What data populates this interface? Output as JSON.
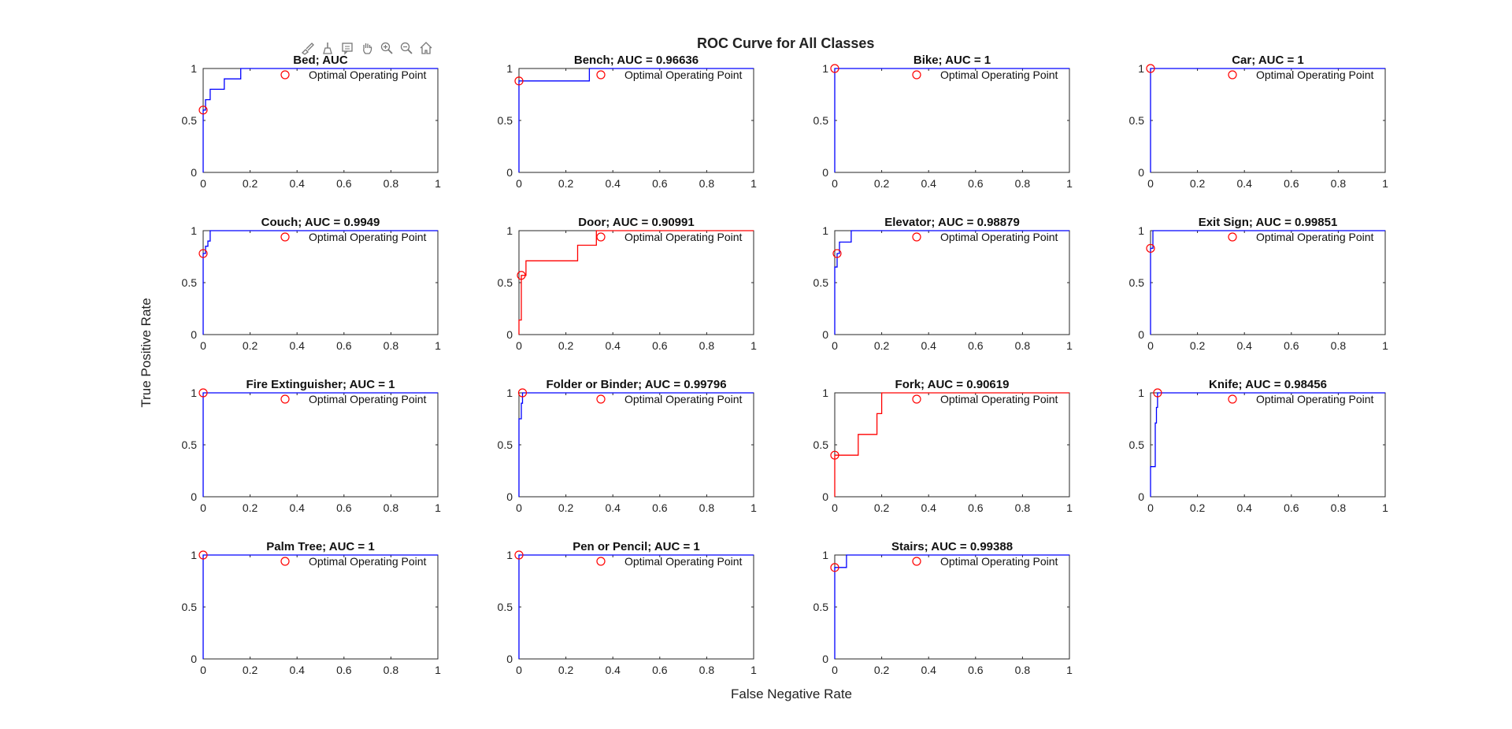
{
  "figure": {
    "title": "ROC Curve for All Classes",
    "xlabel": "False Negative Rate",
    "ylabel": "True Positive Rate"
  },
  "toolbar": [
    {
      "name": "brush-icon"
    },
    {
      "name": "clear-icon"
    },
    {
      "name": "data-tips-icon"
    },
    {
      "name": "pan-icon"
    },
    {
      "name": "zoom-in-icon"
    },
    {
      "name": "zoom-out-icon"
    },
    {
      "name": "home-icon"
    }
  ],
  "colors": {
    "blue": "#0000ff",
    "red": "#ff0000",
    "marker": "#ff0000",
    "axis": "#262626"
  },
  "chart_data": [
    {
      "type": "line",
      "title": "Bed; AUC",
      "color": "blue",
      "legend": "Optimal Operating Point",
      "legend_position": "top-right",
      "xlim": [
        0,
        1
      ],
      "ylim": [
        0,
        1
      ],
      "xticks": [
        "0",
        "0.2",
        "0.4",
        "0.6",
        "0.8",
        "1"
      ],
      "yticks": [
        "0",
        "0.5",
        "1"
      ],
      "x": [
        0,
        0,
        0.01,
        0.01,
        0.03,
        0.03,
        0.04,
        0.04,
        0.09,
        0.09,
        0.16,
        0.16,
        1
      ],
      "y": [
        0,
        0.6,
        0.6,
        0.7,
        0.7,
        0.8,
        0.8,
        0.8,
        0.8,
        0.9,
        0.9,
        1,
        1
      ],
      "optimal_point": [
        0,
        0.6
      ]
    },
    {
      "type": "line",
      "title": "Bench; AUC = 0.96636",
      "color": "blue",
      "legend": "Optimal Operating Point",
      "legend_position": "top-right",
      "xlim": [
        0,
        1
      ],
      "ylim": [
        0,
        1
      ],
      "xticks": [
        "0",
        "0.2",
        "0.4",
        "0.6",
        "0.8",
        "1"
      ],
      "yticks": [
        "0",
        "0.5",
        "1"
      ],
      "x": [
        0,
        0,
        0.3,
        0.3,
        1
      ],
      "y": [
        0,
        0.88,
        0.88,
        1,
        1
      ],
      "optimal_point": [
        0,
        0.88
      ]
    },
    {
      "type": "line",
      "title": "Bike; AUC = 1",
      "color": "blue",
      "legend": "Optimal Operating Point",
      "legend_position": "top-right",
      "xlim": [
        0,
        1
      ],
      "ylim": [
        0,
        1
      ],
      "xticks": [
        "0",
        "0.2",
        "0.4",
        "0.6",
        "0.8",
        "1"
      ],
      "yticks": [
        "0",
        "0.5",
        "1"
      ],
      "x": [
        0,
        0,
        1
      ],
      "y": [
        0,
        1,
        1
      ],
      "optimal_point": [
        0,
        1
      ]
    },
    {
      "type": "line",
      "title": "Car; AUC = 1",
      "color": "blue",
      "legend": "Optimal Operating Point",
      "legend_position": "top-right",
      "xlim": [
        0,
        1
      ],
      "ylim": [
        0,
        1
      ],
      "xticks": [
        "0",
        "0.2",
        "0.4",
        "0.6",
        "0.8",
        "1"
      ],
      "yticks": [
        "0",
        "0.5",
        "1"
      ],
      "x": [
        0,
        0,
        1
      ],
      "y": [
        0,
        1,
        1
      ],
      "optimal_point": [
        0,
        1
      ]
    },
    {
      "type": "line",
      "title": "Couch; AUC = 0.9949",
      "color": "blue",
      "legend": "Optimal Operating Point",
      "legend_position": "top-right",
      "xlim": [
        0,
        1
      ],
      "ylim": [
        0,
        1
      ],
      "xticks": [
        "0",
        "0.2",
        "0.4",
        "0.6",
        "0.8",
        "1"
      ],
      "yticks": [
        "0",
        "0.5",
        "1"
      ],
      "x": [
        0,
        0,
        0.01,
        0.01,
        0.02,
        0.02,
        0.03,
        0.03,
        1
      ],
      "y": [
        0,
        0.78,
        0.78,
        0.85,
        0.85,
        0.9,
        0.9,
        1,
        1
      ],
      "optimal_point": [
        0,
        0.78
      ]
    },
    {
      "type": "line",
      "title": "Door; AUC = 0.90991",
      "color": "red",
      "legend": "Optimal Operating Point",
      "legend_position": "top-right",
      "xlim": [
        0,
        1
      ],
      "ylim": [
        0,
        1
      ],
      "xticks": [
        "0",
        "0.2",
        "0.4",
        "0.6",
        "0.8",
        "1"
      ],
      "yticks": [
        "0",
        "0.5",
        "1"
      ],
      "x": [
        0,
        0,
        0.01,
        0.01,
        0.03,
        0.03,
        0.25,
        0.25,
        0.33,
        0.33,
        1
      ],
      "y": [
        0,
        0.14,
        0.14,
        0.57,
        0.57,
        0.71,
        0.71,
        0.86,
        0.86,
        1,
        1
      ],
      "optimal_point": [
        0.01,
        0.57
      ]
    },
    {
      "type": "line",
      "title": "Elevator; AUC = 0.98879",
      "color": "blue",
      "legend": "Optimal Operating Point",
      "legend_position": "top-right",
      "xlim": [
        0,
        1
      ],
      "ylim": [
        0,
        1
      ],
      "xticks": [
        "0",
        "0.2",
        "0.4",
        "0.6",
        "0.8",
        "1"
      ],
      "yticks": [
        "0",
        "0.5",
        "1"
      ],
      "x": [
        0,
        0,
        0.01,
        0.01,
        0.02,
        0.02,
        0.07,
        0.07,
        1
      ],
      "y": [
        0,
        0.65,
        0.65,
        0.78,
        0.78,
        0.89,
        0.89,
        1,
        1
      ],
      "optimal_point": [
        0.01,
        0.78
      ]
    },
    {
      "type": "line",
      "title": "Exit Sign; AUC = 0.99851",
      "color": "blue",
      "legend": "Optimal Operating Point",
      "legend_position": "top-right",
      "xlim": [
        0,
        1
      ],
      "ylim": [
        0,
        1
      ],
      "xticks": [
        "0",
        "0.2",
        "0.4",
        "0.6",
        "0.8",
        "1"
      ],
      "yticks": [
        "0",
        "0.5",
        "1"
      ],
      "x": [
        0,
        0,
        0.01,
        0.01,
        1
      ],
      "y": [
        0,
        0.83,
        0.83,
        1,
        1
      ],
      "optimal_point": [
        0,
        0.83
      ]
    },
    {
      "type": "line",
      "title": "Fire Extinguisher; AUC = 1",
      "color": "blue",
      "legend": "Optimal Operating Point",
      "legend_position": "top-right",
      "xlim": [
        0,
        1
      ],
      "ylim": [
        0,
        1
      ],
      "xticks": [
        "0",
        "0.2",
        "0.4",
        "0.6",
        "0.8",
        "1"
      ],
      "yticks": [
        "0",
        "0.5",
        "1"
      ],
      "x": [
        0,
        0,
        1
      ],
      "y": [
        0,
        1,
        1
      ],
      "optimal_point": [
        0,
        1
      ]
    },
    {
      "type": "line",
      "title": "Folder or Binder; AUC = 0.99796",
      "color": "blue",
      "legend": "Optimal Operating Point",
      "legend_position": "top-right",
      "xlim": [
        0,
        1
      ],
      "ylim": [
        0,
        1
      ],
      "xticks": [
        "0",
        "0.2",
        "0.4",
        "0.6",
        "0.8",
        "1"
      ],
      "yticks": [
        "0",
        "0.5",
        "1"
      ],
      "x": [
        0,
        0,
        0.01,
        0.01,
        0.015,
        0.015,
        1
      ],
      "y": [
        0,
        0.75,
        0.75,
        0.9,
        0.9,
        1,
        1
      ],
      "optimal_point": [
        0.015,
        1
      ]
    },
    {
      "type": "line",
      "title": "Fork; AUC = 0.90619",
      "color": "red",
      "legend": "Optimal Operating Point",
      "legend_position": "top-right",
      "xlim": [
        0,
        1
      ],
      "ylim": [
        0,
        1
      ],
      "xticks": [
        "0",
        "0.2",
        "0.4",
        "0.6",
        "0.8",
        "1"
      ],
      "yticks": [
        "0",
        "0.5",
        "1"
      ],
      "x": [
        0,
        0,
        0.1,
        0.1,
        0.18,
        0.18,
        0.2,
        0.2,
        1
      ],
      "y": [
        0,
        0.4,
        0.4,
        0.6,
        0.6,
        0.8,
        0.8,
        1,
        1
      ],
      "optimal_point": [
        0,
        0.4
      ]
    },
    {
      "type": "line",
      "title": "Knife; AUC = 0.98456",
      "color": "blue",
      "legend": "Optimal Operating Point",
      "legend_position": "top-right",
      "xlim": [
        0,
        1
      ],
      "ylim": [
        0,
        1
      ],
      "xticks": [
        "0",
        "0.2",
        "0.4",
        "0.6",
        "0.8",
        "1"
      ],
      "yticks": [
        "0",
        "0.5",
        "1"
      ],
      "x": [
        0,
        0,
        0.02,
        0.02,
        0.025,
        0.025,
        0.03,
        0.03,
        1
      ],
      "y": [
        0,
        0.29,
        0.29,
        0.71,
        0.71,
        0.86,
        0.86,
        1,
        1
      ],
      "optimal_point": [
        0.03,
        1
      ]
    },
    {
      "type": "line",
      "title": "Palm Tree; AUC = 1",
      "color": "blue",
      "legend": "Optimal Operating Point",
      "legend_position": "top-right",
      "xlim": [
        0,
        1
      ],
      "ylim": [
        0,
        1
      ],
      "xticks": [
        "0",
        "0.2",
        "0.4",
        "0.6",
        "0.8",
        "1"
      ],
      "yticks": [
        "0",
        "0.5",
        "1"
      ],
      "x": [
        0,
        0,
        1
      ],
      "y": [
        0,
        1,
        1
      ],
      "optimal_point": [
        0,
        1
      ]
    },
    {
      "type": "line",
      "title": "Pen or Pencil; AUC = 1",
      "color": "blue",
      "legend": "Optimal Operating Point",
      "legend_position": "top-right",
      "xlim": [
        0,
        1
      ],
      "ylim": [
        0,
        1
      ],
      "xticks": [
        "0",
        "0.2",
        "0.4",
        "0.6",
        "0.8",
        "1"
      ],
      "yticks": [
        "0",
        "0.5",
        "1"
      ],
      "x": [
        0,
        0,
        1
      ],
      "y": [
        0,
        1,
        1
      ],
      "optimal_point": [
        0,
        1
      ]
    },
    {
      "type": "line",
      "title": "Stairs; AUC = 0.99388",
      "color": "blue",
      "legend": "Optimal Operating Point",
      "legend_position": "top-right",
      "xlim": [
        0,
        1
      ],
      "ylim": [
        0,
        1
      ],
      "xticks": [
        "0",
        "0.2",
        "0.4",
        "0.6",
        "0.8",
        "1"
      ],
      "yticks": [
        "0",
        "0.5",
        "1"
      ],
      "x": [
        0,
        0,
        0.05,
        0.05,
        1
      ],
      "y": [
        0,
        0.88,
        0.88,
        1,
        1
      ],
      "optimal_point": [
        0,
        0.88
      ]
    }
  ]
}
